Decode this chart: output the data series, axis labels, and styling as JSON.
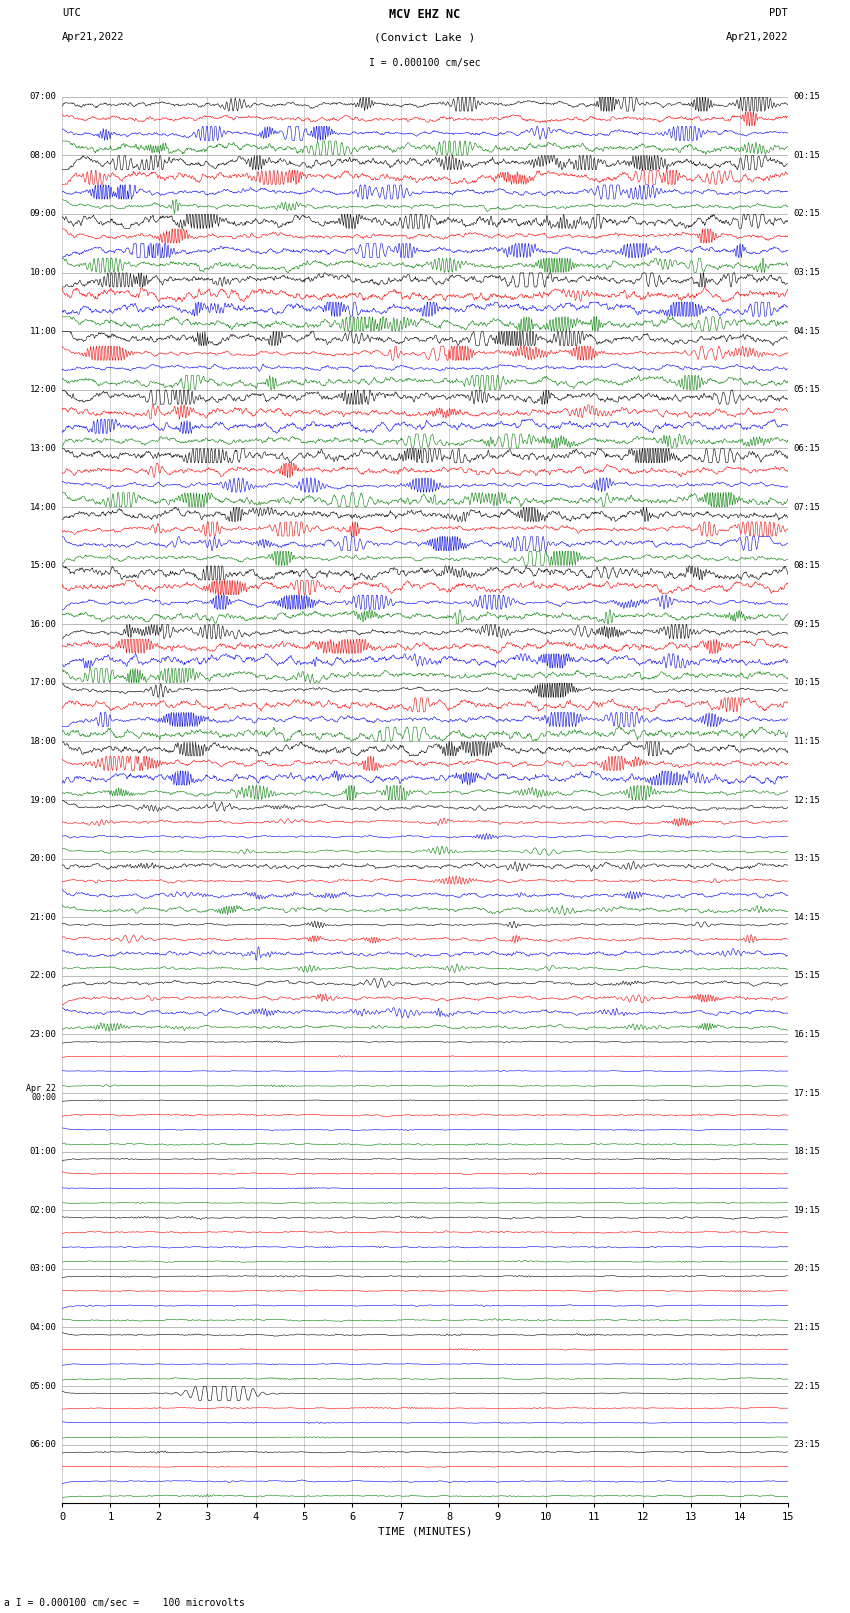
{
  "title_line1": "MCV EHZ NC",
  "title_line2": "(Convict Lake )",
  "scale_label": "I = 0.000100 cm/sec",
  "bottom_label": "a I = 0.000100 cm/sec =    100 microvolts",
  "utc_label": "UTC",
  "utc_date": "Apr21,2022",
  "pdt_label": "PDT",
  "pdt_date": "Apr21,2022",
  "xlabel": "TIME (MINUTES)",
  "left_times_utc": [
    "07:00",
    "08:00",
    "09:00",
    "10:00",
    "11:00",
    "12:00",
    "13:00",
    "14:00",
    "15:00",
    "16:00",
    "17:00",
    "18:00",
    "19:00",
    "20:00",
    "21:00",
    "22:00",
    "23:00",
    "Apr 22\n00:00",
    "01:00",
    "02:00",
    "03:00",
    "04:00",
    "05:00",
    "06:00"
  ],
  "right_times_pdt": [
    "00:15",
    "01:15",
    "02:15",
    "03:15",
    "04:15",
    "05:15",
    "06:15",
    "07:15",
    "08:15",
    "09:15",
    "10:15",
    "11:15",
    "12:15",
    "13:15",
    "14:15",
    "15:15",
    "16:15",
    "17:15",
    "18:15",
    "19:15",
    "20:15",
    "21:15",
    "22:15",
    "23:15"
  ],
  "n_hour_blocks": 24,
  "traces_per_block": 4,
  "colors": [
    "black",
    "red",
    "blue",
    "green"
  ],
  "xlim": [
    0,
    15
  ],
  "xticks": [
    0,
    1,
    2,
    3,
    4,
    5,
    6,
    7,
    8,
    9,
    10,
    11,
    12,
    13,
    14,
    15
  ],
  "bg_color": "white",
  "grid_color": "#888888",
  "seed": 42,
  "n_points": 1500
}
